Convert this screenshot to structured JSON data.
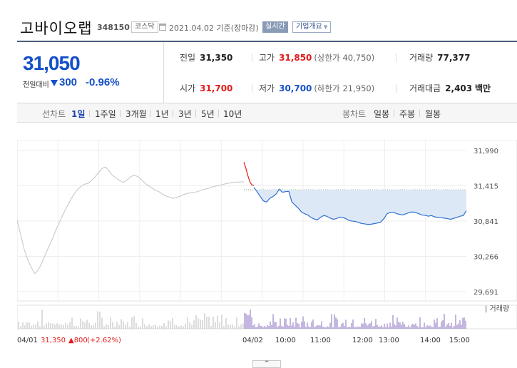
{
  "header": {
    "company_name": "고바이오랩",
    "stock_code": "348150",
    "market": "코스닥",
    "date_text": "2021.04.02  기준(장마감)",
    "realtime_label": "실시간",
    "company_overview_label": "기업개요",
    "calendar_icon": "calendar-icon"
  },
  "quote": {
    "current_price": "31,050",
    "change_label": "전일대비",
    "change_value": "300",
    "change_rate": "-0.96%",
    "direction": "down",
    "down_color": "#1450c8",
    "up_color": "#e11b1b",
    "prev_close_label": "전일",
    "prev_close": "31,350",
    "high_label": "고가",
    "high": "31,850",
    "upper_limit_label": "(상한가",
    "upper_limit": "40,750)",
    "volume_label": "거래량",
    "volume": "77,377",
    "open_label": "시가",
    "open": "31,700",
    "low_label": "저가",
    "low": "30,700",
    "lower_limit_label": "(하한가",
    "lower_limit": "21,950)",
    "trade_value_label": "거래대금",
    "trade_value": "2,403",
    "trade_value_unit": "백만"
  },
  "tabs": {
    "line_chart_label": "선차트",
    "line_periods": [
      "1일",
      "1주일",
      "3개월",
      "1년",
      "3년",
      "5년",
      "10년"
    ],
    "active_period": "1일",
    "candle_chart_label": "봉차트",
    "candle_periods": [
      "일봉",
      "주봉",
      "월봉"
    ]
  },
  "chart_data": {
    "type": "line",
    "y_ticks": [
      "31,990",
      "31,415",
      "30,841",
      "30,266",
      "29,691"
    ],
    "ylim": [
      29691,
      31990
    ],
    "prev_close": 31350,
    "volume_legend": "거래량",
    "x_labels_prev": {
      "date": "04/01",
      "close": "31,350",
      "change": "800",
      "rate": "(+2.62%)"
    },
    "x_labels_today": [
      "04/02",
      "10:00",
      "11:00",
      "12:00",
      "13:00",
      "14:00",
      "15:00"
    ],
    "prev_day_series": [
      30855,
      30620,
      30380,
      30210,
      30085,
      29985,
      30050,
      30160,
      30300,
      30430,
      30555,
      30700,
      30830,
      30955,
      31065,
      31180,
      31275,
      31350,
      31405,
      31440,
      31455,
      31500,
      31560,
      31630,
      31700,
      31720,
      31650,
      31580,
      31540,
      31500,
      31470,
      31510,
      31560,
      31590,
      31565,
      31520,
      31460,
      31420,
      31380,
      31345,
      31320,
      31280,
      31250,
      31230,
      31210,
      31225,
      31245,
      31270,
      31290,
      31300,
      31310,
      31320,
      31345,
      31360,
      31375,
      31395,
      31410,
      31420,
      31435,
      31450,
      31460,
      31470,
      31475,
      31478,
      31480
    ],
    "today_opening_series": [
      31800,
      31700,
      31580,
      31480,
      31430,
      31420
    ],
    "today_series": [
      31390,
      31320,
      31240,
      31170,
      31150,
      31210,
      31240,
      31280,
      31360,
      31310,
      31320,
      31325,
      31150,
      31100,
      31050,
      30990,
      30960,
      30940,
      30900,
      30875,
      30860,
      30900,
      30930,
      30920,
      30890,
      30870,
      30880,
      30905,
      30900,
      30880,
      30850,
      30840,
      30835,
      30820,
      30800,
      30795,
      30785,
      30790,
      30800,
      30810,
      30825,
      30880,
      30960,
      30980,
      30985,
      30960,
      30950,
      30940,
      30960,
      30980,
      30990,
      30980,
      30960,
      30940,
      30935,
      30920,
      30930,
      30910,
      30900,
      30895,
      30890,
      30880,
      30870,
      30885,
      30900,
      30920,
      30930,
      31010
    ]
  },
  "expand_button_label": "^"
}
